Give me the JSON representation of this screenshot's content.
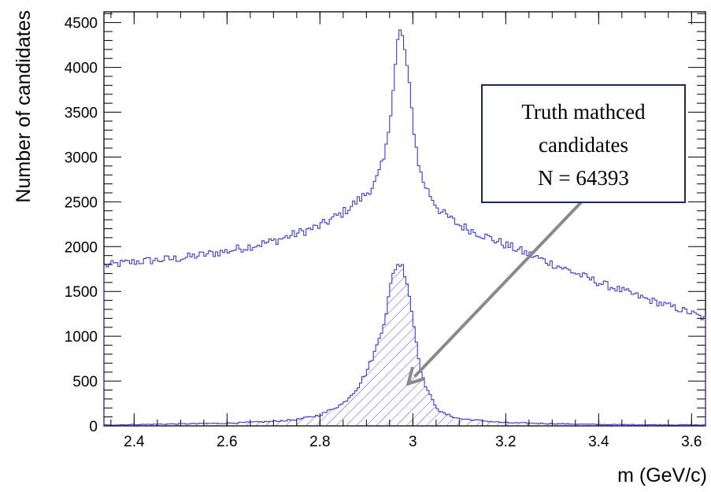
{
  "chart_data": {
    "type": "histogram",
    "xlabel": "m (GeV/c)",
    "ylabel": "Number of candidates",
    "xlim": [
      2.335,
      3.63
    ],
    "ylim": [
      0,
      4620
    ],
    "x_ticks": [
      "2.4",
      "2.6",
      "2.8",
      "3",
      "3.2",
      "3.4",
      "3.6"
    ],
    "y_ticks": [
      "0",
      "500",
      "1000",
      "1500",
      "2000",
      "2500",
      "3000",
      "3500",
      "4000",
      "4500"
    ],
    "series": [
      {
        "key": "all",
        "style": "step",
        "color": "#3b3bd0",
        "points": [
          [
            2.34,
            1790
          ],
          [
            2.4,
            1830
          ],
          [
            2.5,
            1870
          ],
          [
            2.6,
            1950
          ],
          [
            2.7,
            2060
          ],
          [
            2.8,
            2230
          ],
          [
            2.85,
            2380
          ],
          [
            2.9,
            2590
          ],
          [
            2.92,
            2720
          ],
          [
            2.94,
            3000
          ],
          [
            2.95,
            3400
          ],
          [
            2.96,
            3900
          ],
          [
            2.97,
            4420
          ],
          [
            2.98,
            4300
          ],
          [
            2.99,
            3900
          ],
          [
            3.0,
            3400
          ],
          [
            3.01,
            3000
          ],
          [
            3.02,
            2750
          ],
          [
            3.04,
            2550
          ],
          [
            3.06,
            2390
          ],
          [
            3.1,
            2240
          ],
          [
            3.2,
            2020
          ],
          [
            3.3,
            1810
          ],
          [
            3.4,
            1600
          ],
          [
            3.5,
            1420
          ],
          [
            3.6,
            1260
          ],
          [
            3.63,
            1190
          ]
        ]
      },
      {
        "key": "truth",
        "style": "hatched-step",
        "color": "#3b3bd0",
        "points": [
          [
            2.34,
            10
          ],
          [
            2.6,
            30
          ],
          [
            2.7,
            50
          ],
          [
            2.75,
            70
          ],
          [
            2.8,
            120
          ],
          [
            2.85,
            250
          ],
          [
            2.88,
            420
          ],
          [
            2.9,
            600
          ],
          [
            2.92,
            850
          ],
          [
            2.94,
            1200
          ],
          [
            2.95,
            1500
          ],
          [
            2.96,
            1750
          ],
          [
            2.97,
            1820
          ],
          [
            2.98,
            1760
          ],
          [
            2.99,
            1550
          ],
          [
            3.0,
            1200
          ],
          [
            3.01,
            850
          ],
          [
            3.02,
            550
          ],
          [
            3.04,
            300
          ],
          [
            3.06,
            150
          ],
          [
            3.1,
            80
          ],
          [
            3.2,
            35
          ],
          [
            3.4,
            15
          ],
          [
            3.63,
            10
          ]
        ]
      }
    ],
    "annotation": {
      "lines": [
        "Truth mathced",
        "candidates",
        "N = 64393"
      ],
      "border_color": "#1f2a5c",
      "arrow_color": "#8a8a8a",
      "arrow_target": [
        2.99,
        470
      ]
    }
  }
}
